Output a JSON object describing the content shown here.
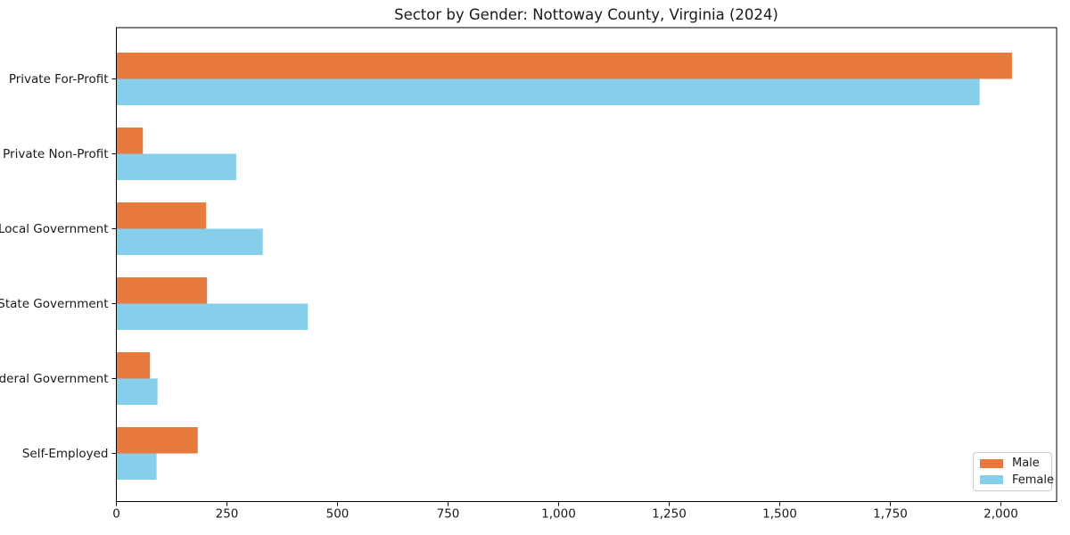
{
  "title": "Sector by Gender: Nottoway County, Virginia (2024)",
  "colors": {
    "male": "#E87A3D",
    "female": "#87CEEB",
    "spine": "#000000",
    "tick_text": "#1a1a1a",
    "legend_border": "#cccccc",
    "background": "#ffffff"
  },
  "legend": {
    "position": "lower right",
    "entries": [
      {
        "label": "Male"
      },
      {
        "label": "Female"
      }
    ]
  },
  "chart_data": {
    "type": "bar",
    "orientation": "horizontal",
    "title": "Sector by Gender: Nottoway County, Virginia (2024)",
    "xlabel": "",
    "ylabel": "",
    "categories": [
      "Private For-Profit",
      "Private Non-Profit",
      "Local Government",
      "State Government",
      "Federal Government",
      "Self-Employed"
    ],
    "series": [
      {
        "name": "Male",
        "color": "#E87A3D",
        "values": [
          2025,
          60,
          203,
          205,
          76,
          184
        ]
      },
      {
        "name": "Female",
        "color": "#87CEEB",
        "values": [
          1952,
          271,
          331,
          433,
          93,
          91
        ]
      }
    ],
    "xlim": [
      0,
      2126
    ],
    "x_ticks": [
      0,
      250,
      500,
      750,
      1000,
      1250,
      1500,
      1750,
      2000
    ],
    "x_tick_labels": [
      "0",
      "250",
      "500",
      "750",
      "1,000",
      "1,250",
      "1,500",
      "1,750",
      "2,000"
    ],
    "grid": false,
    "legend_position": "lower right"
  }
}
